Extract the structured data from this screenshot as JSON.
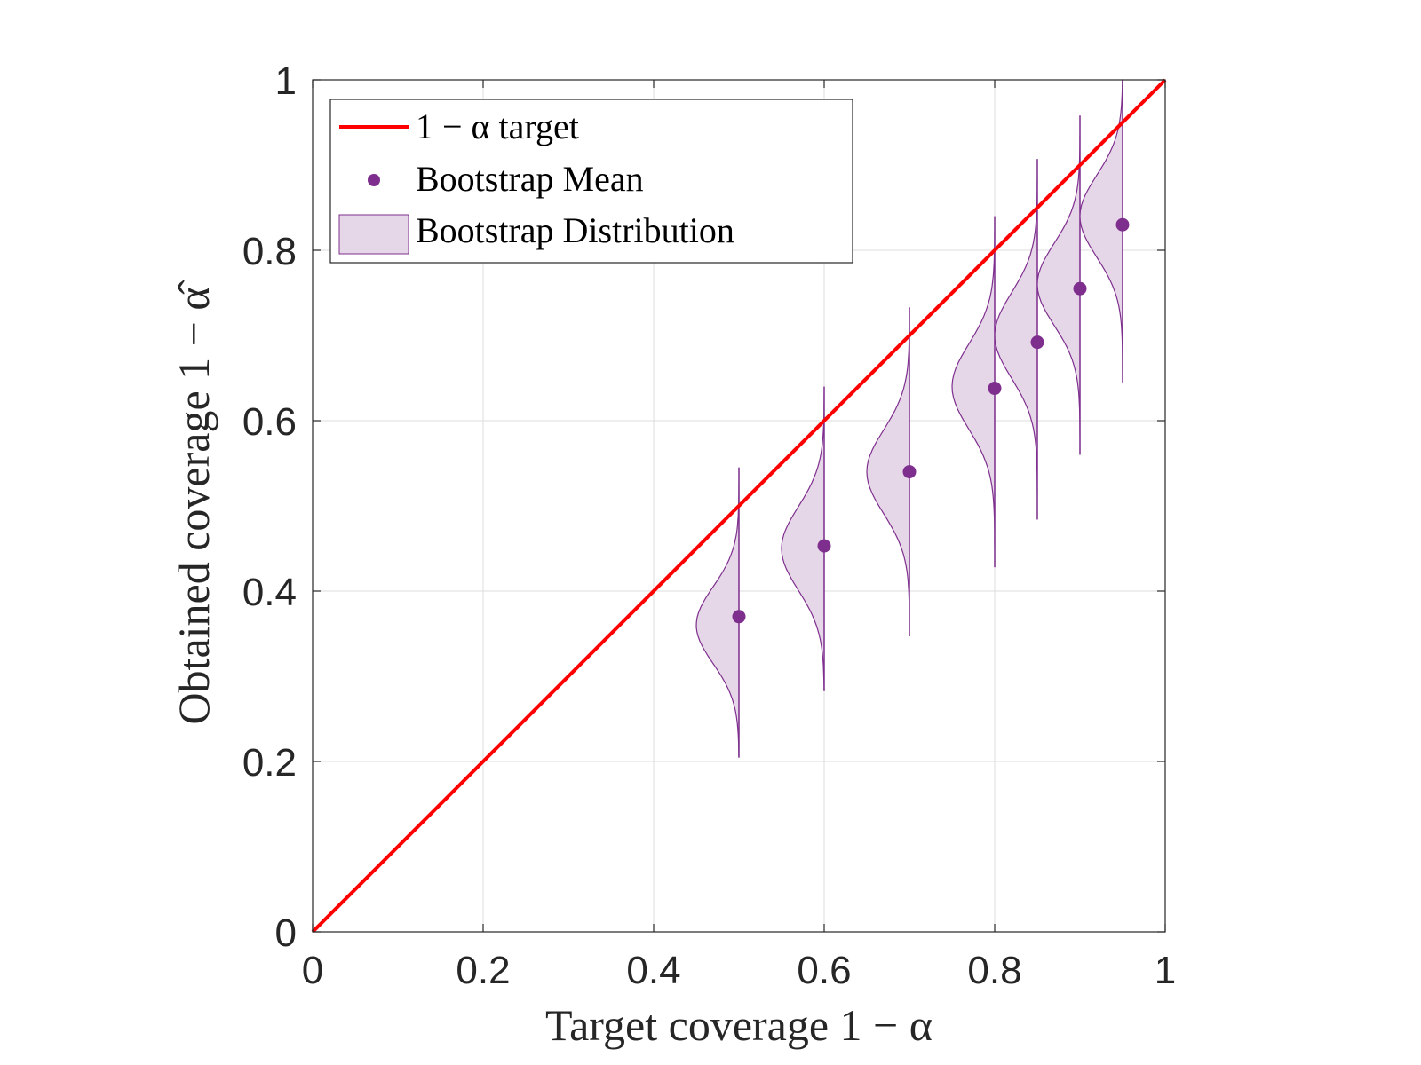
{
  "chart_data": {
    "type": "scatter",
    "title": "",
    "xlabel": "Target coverage 1 − α",
    "ylabel": "Obtained coverage 1 − α̂",
    "xlim": [
      0,
      1
    ],
    "ylim": [
      0,
      1
    ],
    "grid": true,
    "xticks": [
      0,
      0.2,
      0.4,
      0.6,
      0.8,
      1
    ],
    "yticks": [
      0,
      0.2,
      0.4,
      0.6,
      0.8,
      1
    ],
    "xtick_labels": [
      "0",
      "0.2",
      "0.4",
      "0.6",
      "0.8",
      "1"
    ],
    "ytick_labels": [
      "0",
      "0.2",
      "0.4",
      "0.6",
      "0.8",
      "1"
    ],
    "legend": {
      "placement": "top-left",
      "entries": [
        "1 − α target",
        "Bootstrap Mean",
        "Bootstrap Distribution"
      ]
    },
    "colors": {
      "target_line": "#ff0000",
      "mean_marker": "#7e2f8e",
      "distribution_fill": "#e6d7e8",
      "distribution_edge": "#7e2f8e"
    },
    "target_line": {
      "name": "1 − α target",
      "x": [
        0,
        1
      ],
      "y": [
        0,
        1
      ]
    },
    "bootstrap": [
      {
        "target": 0.5,
        "mean": 0.37,
        "min": 0.205,
        "max": 0.545,
        "mode": 0.36,
        "spread": 0.045
      },
      {
        "target": 0.6,
        "mean": 0.453,
        "min": 0.283,
        "max": 0.64,
        "mode": 0.45,
        "spread": 0.049
      },
      {
        "target": 0.7,
        "mean": 0.54,
        "min": 0.347,
        "max": 0.733,
        "mode": 0.54,
        "spread": 0.049
      },
      {
        "target": 0.8,
        "mean": 0.638,
        "min": 0.428,
        "max": 0.84,
        "mode": 0.64,
        "spread": 0.05
      },
      {
        "target": 0.85,
        "mean": 0.692,
        "min": 0.484,
        "max": 0.907,
        "mode": 0.7,
        "spread": 0.05
      },
      {
        "target": 0.9,
        "mean": 0.755,
        "min": 0.56,
        "max": 0.958,
        "mode": 0.76,
        "spread": 0.048
      },
      {
        "target": 0.95,
        "mean": 0.83,
        "min": 0.645,
        "max": 1.0,
        "mode": 0.84,
        "spread": 0.048
      }
    ]
  }
}
